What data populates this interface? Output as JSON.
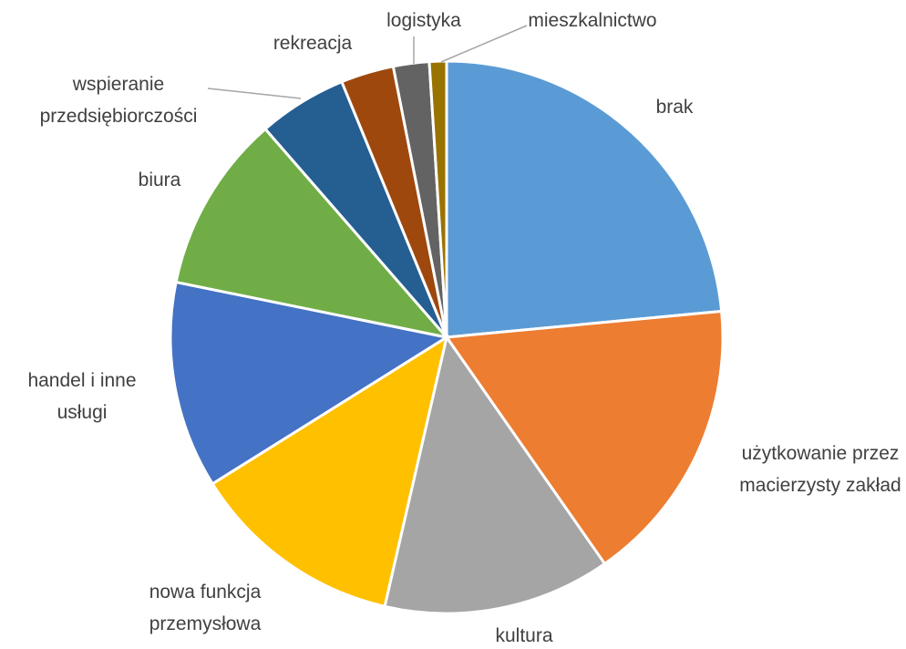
{
  "chart_data": {
    "type": "pie",
    "categories": [
      "brak",
      "użytkowanie przez macierzysty zakład",
      "kultura",
      "nowa funkcja przemysłowa",
      "handel i inne usługi",
      "biura",
      "wspieranie przedsiębiorczości",
      "rekreacja",
      "logistyka",
      "mieszkalnictwo"
    ],
    "values": [
      23.5,
      16.8,
      13.3,
      12.5,
      12.1,
      10.4,
      5.2,
      3.1,
      2.1,
      1.0
    ],
    "colors": [
      "#5b9bd5",
      "#ed7d31",
      "#a5a5a5",
      "#ffc000",
      "#4472c4",
      "#70ad47",
      "#255e91",
      "#9e480e",
      "#636363",
      "#997300"
    ]
  }
}
